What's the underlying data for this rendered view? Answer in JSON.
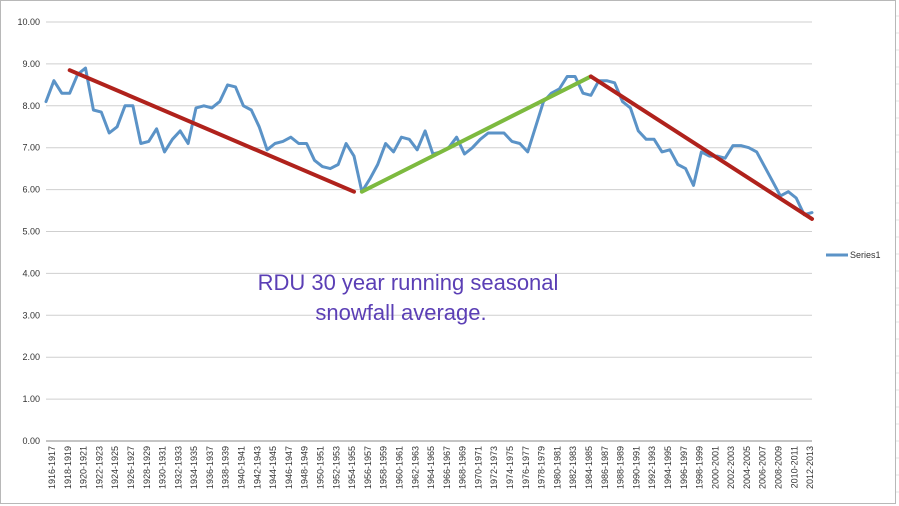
{
  "chart_data": {
    "type": "line",
    "title": "",
    "xlabel": "",
    "ylabel": "",
    "ylim": [
      0,
      10
    ],
    "y_ticks": [
      "0.00",
      "1.00",
      "2.00",
      "3.00",
      "4.00",
      "5.00",
      "6.00",
      "7.00",
      "8.00",
      "9.00",
      "10.00"
    ],
    "grid": true,
    "legend_position": "right",
    "x_tick_labels": [
      "1916-1917",
      "1918-1919",
      "1920-1921",
      "1922-1923",
      "1924-1925",
      "1926-1927",
      "1928-1929",
      "1930-1931",
      "1932-1933",
      "1934-1935",
      "1936-1937",
      "1938-1939",
      "1940-1941",
      "1942-1943",
      "1944-1945",
      "1946-1947",
      "1948-1949",
      "1950-1951",
      "1952-1953",
      "1954-1955",
      "1956-1957",
      "1958-1959",
      "1960-1961",
      "1962-1963",
      "1964-1965",
      "1966-1967",
      "1968-1969",
      "1970-1971",
      "1972-1973",
      "1974-1975",
      "1976-1977",
      "1978-1979",
      "1980-1981",
      "1982-1983",
      "1984-1985",
      "1986-1987",
      "1988-1989",
      "1990-1991",
      "1992-1993",
      "1994-1995",
      "1996-1997",
      "1998-1999",
      "2000-2001",
      "2002-2003",
      "2004-2005",
      "2006-2007",
      "2008-2009",
      "2010-2011",
      "2012-2013"
    ],
    "series": [
      {
        "name": "Series1",
        "color": "#5b93c7",
        "values": [
          8.1,
          8.6,
          8.3,
          8.3,
          8.75,
          8.9,
          7.9,
          7.85,
          7.35,
          7.5,
          8.0,
          8.0,
          7.1,
          7.15,
          7.45,
          6.9,
          7.2,
          7.4,
          7.1,
          7.95,
          8.0,
          7.95,
          8.1,
          8.5,
          8.45,
          8.0,
          7.9,
          7.5,
          6.95,
          7.1,
          7.15,
          7.25,
          7.1,
          7.1,
          6.7,
          6.55,
          6.5,
          6.6,
          7.1,
          6.8,
          5.95,
          6.25,
          6.6,
          7.1,
          6.9,
          7.25,
          7.2,
          6.95,
          7.4,
          6.85,
          6.9,
          7.0,
          7.25,
          6.85,
          7.0,
          7.2,
          7.35,
          7.35,
          7.35,
          7.15,
          7.1,
          6.9,
          7.5,
          8.1,
          8.3,
          8.4,
          8.7,
          8.7,
          8.3,
          8.25,
          8.6,
          8.6,
          8.55,
          8.1,
          7.95,
          7.4,
          7.2,
          7.2,
          6.9,
          6.95,
          6.6,
          6.5,
          6.1,
          6.9,
          6.8,
          6.8,
          6.75,
          7.05,
          7.05,
          7.0,
          6.9,
          6.55,
          6.2,
          5.85,
          5.95,
          5.8,
          5.4,
          5.45
        ]
      }
    ],
    "annotation": {
      "line1": "RDU  30 year running seasonal",
      "line2": "snowfall average."
    },
    "trend_lines": [
      {
        "color": "#b0221c",
        "from": {
          "x": "1919-1920",
          "y": 8.85
        },
        "to": {
          "x": "1955-1956",
          "y": 5.95
        }
      },
      {
        "color": "#7dba3f",
        "from": {
          "x": "1956-1957",
          "y": 5.95
        },
        "to": {
          "x": "1985-1986",
          "y": 8.7
        }
      },
      {
        "color": "#b0221c",
        "from": {
          "x": "1985-1986",
          "y": 8.7
        },
        "to": {
          "x": "2013-2014",
          "y": 5.3
        }
      }
    ]
  }
}
